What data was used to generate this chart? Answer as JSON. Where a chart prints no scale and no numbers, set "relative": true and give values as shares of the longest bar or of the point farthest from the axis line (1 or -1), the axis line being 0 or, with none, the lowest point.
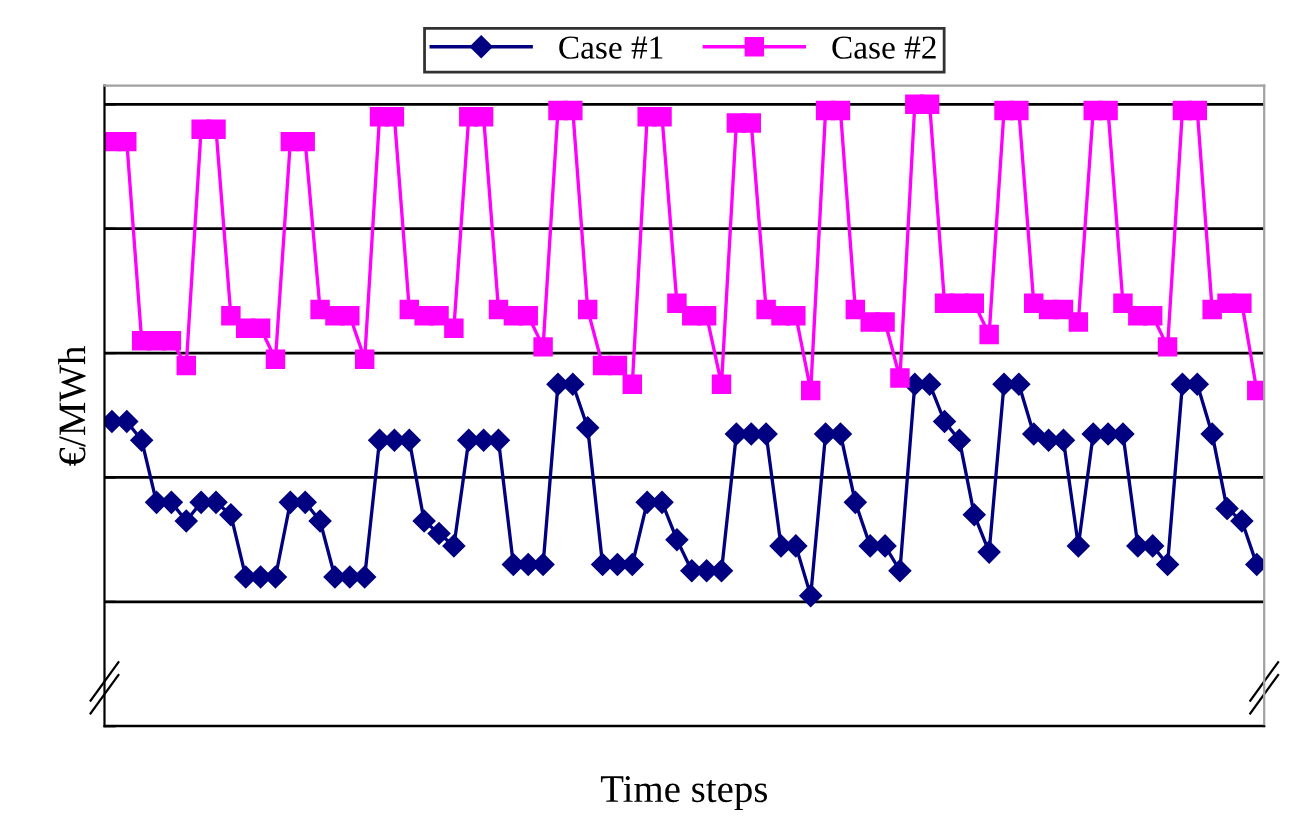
{
  "chart_data": {
    "type": "line",
    "relative": true,
    "xlabel": "Time steps",
    "ylabel": "€/MWh",
    "grid": "y",
    "legend": "top",
    "categories": [
      null,
      null,
      null,
      null,
      null,
      null,
      null,
      null,
      null,
      null,
      null,
      null,
      null,
      null,
      null,
      null,
      null,
      null,
      null,
      null,
      null,
      null,
      null,
      null,
      null,
      null,
      null,
      null,
      null,
      null,
      null,
      null,
      null,
      null,
      null,
      null,
      null,
      null,
      null,
      null,
      null,
      null,
      null,
      null,
      null,
      null,
      null,
      null,
      null,
      null,
      null,
      null,
      null,
      null,
      null,
      null,
      null,
      null,
      null,
      null,
      null,
      null,
      null,
      null,
      null,
      null,
      null,
      null,
      null,
      null,
      null,
      null,
      null,
      null,
      null,
      null,
      null,
      null
    ],
    "series": [
      {
        "name": "Case #1",
        "color": "#000080",
        "marker": "diamond",
        "values": [
          0.49,
          0.49,
          0.46,
          0.36,
          0.36,
          0.33,
          0.36,
          0.36,
          0.34,
          0.24,
          0.24,
          0.24,
          0.36,
          0.36,
          0.33,
          0.24,
          0.24,
          0.24,
          0.46,
          0.46,
          0.46,
          0.33,
          0.31,
          0.29,
          0.46,
          0.46,
          0.46,
          0.26,
          0.26,
          0.26,
          0.55,
          0.55,
          0.48,
          0.26,
          0.26,
          0.26,
          0.36,
          0.36,
          0.3,
          0.25,
          0.25,
          0.25,
          0.47,
          0.47,
          0.47,
          0.29,
          0.29,
          0.21,
          0.47,
          0.47,
          0.36,
          0.29,
          0.29,
          0.25,
          0.55,
          0.55,
          0.49,
          0.46,
          0.34,
          0.28,
          0.55,
          0.55,
          0.47,
          0.46,
          0.46,
          0.29,
          0.47,
          0.47,
          0.47,
          0.29,
          0.29,
          0.26,
          0.55,
          0.55,
          0.47,
          0.35,
          0.33,
          0.26
        ]
      },
      {
        "name": "Case #2",
        "color": "#ff00ff",
        "marker": "square",
        "values": [
          0.94,
          0.94,
          0.62,
          0.62,
          0.62,
          0.58,
          0.96,
          0.96,
          0.66,
          0.64,
          0.64,
          0.59,
          0.94,
          0.94,
          0.67,
          0.66,
          0.66,
          0.59,
          0.98,
          0.98,
          0.67,
          0.66,
          0.66,
          0.64,
          0.98,
          0.98,
          0.67,
          0.66,
          0.66,
          0.61,
          0.99,
          0.99,
          0.67,
          0.58,
          0.58,
          0.55,
          0.98,
          0.98,
          0.68,
          0.66,
          0.66,
          0.55,
          0.97,
          0.97,
          0.67,
          0.66,
          0.66,
          0.54,
          0.99,
          0.99,
          0.67,
          0.65,
          0.65,
          0.56,
          1.0,
          1.0,
          0.68,
          0.68,
          0.68,
          0.63,
          0.99,
          0.99,
          0.68,
          0.67,
          0.67,
          0.65,
          0.99,
          0.99,
          0.68,
          0.66,
          0.66,
          0.61,
          0.99,
          0.99,
          0.67,
          0.68,
          0.68,
          0.54
        ]
      }
    ]
  }
}
